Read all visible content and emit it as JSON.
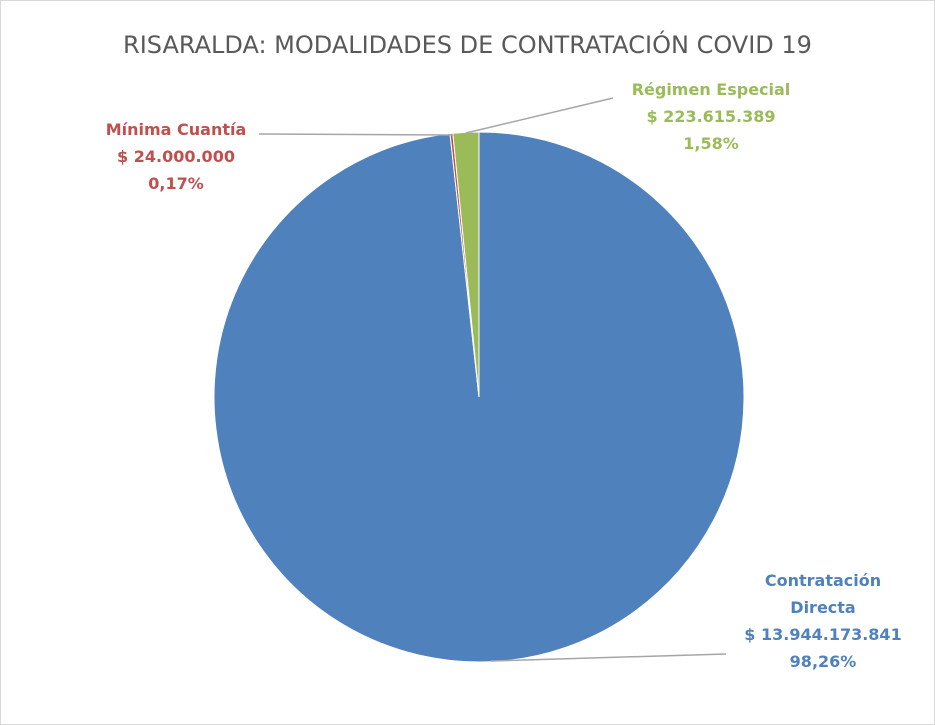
{
  "chart_data": {
    "type": "pie",
    "title": "RISARALDA: MODALIDADES DE CONTRATACIÓN COVID 19",
    "categories": [
      "Contratación Directa",
      "Mínima Cuantía",
      "Régimen Especial"
    ],
    "values": [
      13944173841,
      24000000,
      223615389
    ],
    "value_labels": [
      "$ 13.944.173.841",
      "$ 24.000.000",
      "$ 223.615.389"
    ],
    "percent_labels": [
      "98,26%",
      "0,17%",
      "1,58%"
    ],
    "colors": [
      "#4f81bd",
      "#c0504d",
      "#9bbb59"
    ]
  }
}
